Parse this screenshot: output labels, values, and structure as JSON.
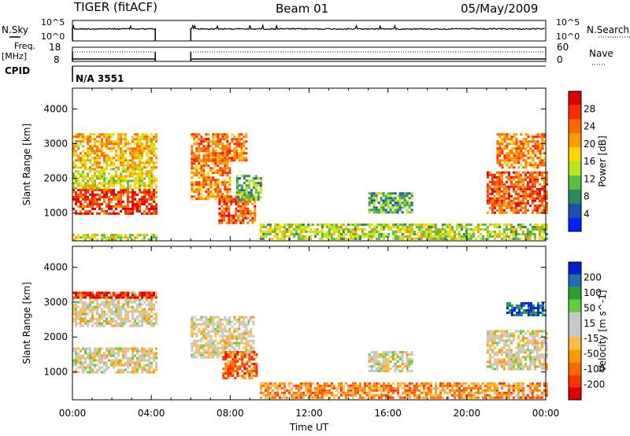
{
  "header": {
    "radar": "TIGER (fitACF)",
    "beam": "Beam 01",
    "date": "05/May/2009"
  },
  "panels": {
    "nsky_label": "N.Sky",
    "nsky_ticks": [
      "10^5",
      "10^0"
    ],
    "nsearch_label": "N.Search",
    "nsearch_ticks": [
      "10^5",
      "10^0"
    ],
    "freq_label": "Freq.",
    "freq_unit": "[MHz]",
    "freq_ticks": [
      "18",
      "8"
    ],
    "nave_label": "Nave",
    "nave_ticks": [
      "60",
      "0"
    ],
    "cpid_label": "CPID",
    "cpid_value": "N/A 3551"
  },
  "chart_data": [
    {
      "type": "heatmap",
      "name": "power",
      "ylabel": "Slant Range [km]",
      "yticks": [
        1000,
        2000,
        3000,
        4000
      ],
      "ylim": [
        200,
        4600
      ],
      "xlim": [
        0,
        24
      ],
      "colorbar_label": "Power [dB]",
      "colorbar_ticks": [
        "4",
        "8",
        "12",
        "16",
        "20",
        "24",
        "28"
      ],
      "colorbar_colors": [
        "#0020ff",
        "#1f4fb0",
        "#2e8b57",
        "#5ebd3e",
        "#b5e61d",
        "#ffd700",
        "#ff9900",
        "#ff6a00",
        "#ff2a00",
        "#e00000"
      ],
      "data_gap_hours": [
        4.2,
        6.0
      ],
      "regions": [
        {
          "t": [
            0,
            4.2
          ],
          "r": [
            1000,
            1700
          ],
          "level": 0.85
        },
        {
          "t": [
            0,
            4.2
          ],
          "r": [
            1700,
            2300
          ],
          "level": 0.5
        },
        {
          "t": [
            0,
            4.2
          ],
          "r": [
            2300,
            3300
          ],
          "level": 0.6
        },
        {
          "t": [
            6.0,
            8.0
          ],
          "r": [
            1400,
            2600
          ],
          "level": 0.7
        },
        {
          "t": [
            6.0,
            8.8
          ],
          "r": [
            2500,
            3300
          ],
          "level": 0.75
        },
        {
          "t": [
            7.4,
            9.3
          ],
          "r": [
            700,
            1500
          ],
          "level": 0.8
        },
        {
          "t": [
            8.3,
            9.6
          ],
          "r": [
            1400,
            2100
          ],
          "level": 0.35
        },
        {
          "t": [
            9.5,
            24.0
          ],
          "r": [
            250,
            700
          ],
          "level": 0.45
        },
        {
          "t": [
            15.0,
            17.2
          ],
          "r": [
            1000,
            1600
          ],
          "level": 0.3
        },
        {
          "t": [
            21.0,
            24.0
          ],
          "r": [
            1000,
            2200
          ],
          "level": 0.8
        },
        {
          "t": [
            21.5,
            24.0
          ],
          "r": [
            2300,
            3300
          ],
          "level": 0.7
        },
        {
          "t": [
            0,
            4.2
          ],
          "r": [
            200,
            400
          ],
          "level": 0.5
        }
      ]
    },
    {
      "type": "heatmap",
      "name": "velocity",
      "ylabel": "Slant Range [km]",
      "xlabel": "Time UT",
      "xticks": [
        "00:00",
        "04:00",
        "08:00",
        "12:00",
        "16:00",
        "20:00",
        "00:00"
      ],
      "yticks": [
        1000,
        2000,
        3000,
        4000
      ],
      "ylim": [
        200,
        4600
      ],
      "xlim": [
        0,
        24
      ],
      "colorbar_label": "Velocity [m s^-1]",
      "colorbar_ticks": [
        "-200",
        "-100",
        "-50",
        "-15",
        "15",
        "50",
        "100",
        "200"
      ],
      "colorbar_colors": [
        "#e00000",
        "#ff3300",
        "#ff6600",
        "#ff9900",
        "#ffbb44",
        "#c8c8c8",
        "#c8c8c8",
        "#66cc33",
        "#2aa02a",
        "#1f6fb0",
        "#0020cc"
      ],
      "data_gap_hours": [
        4.2,
        6.0
      ],
      "regions": [
        {
          "t": [
            0,
            4.2
          ],
          "r": [
            1000,
            1700
          ],
          "level": 0.5
        },
        {
          "t": [
            0,
            4.2
          ],
          "r": [
            2300,
            3300
          ],
          "level": 0.5
        },
        {
          "t": [
            0,
            4.2
          ],
          "r": [
            3100,
            3300
          ],
          "level": 0.05
        },
        {
          "t": [
            6.0,
            9.2
          ],
          "r": [
            1400,
            2600
          ],
          "level": 0.5
        },
        {
          "t": [
            7.6,
            9.3
          ],
          "r": [
            800,
            1600
          ],
          "level": 0.22
        },
        {
          "t": [
            9.5,
            24.0
          ],
          "r": [
            250,
            700
          ],
          "level": 0.3
        },
        {
          "t": [
            15.0,
            17.2
          ],
          "r": [
            1000,
            1600
          ],
          "level": 0.5
        },
        {
          "t": [
            21.0,
            24.0
          ],
          "r": [
            1100,
            2200
          ],
          "level": 0.5
        },
        {
          "t": [
            22.0,
            24.0
          ],
          "r": [
            2600,
            3000
          ],
          "level": 0.9
        }
      ]
    }
  ]
}
